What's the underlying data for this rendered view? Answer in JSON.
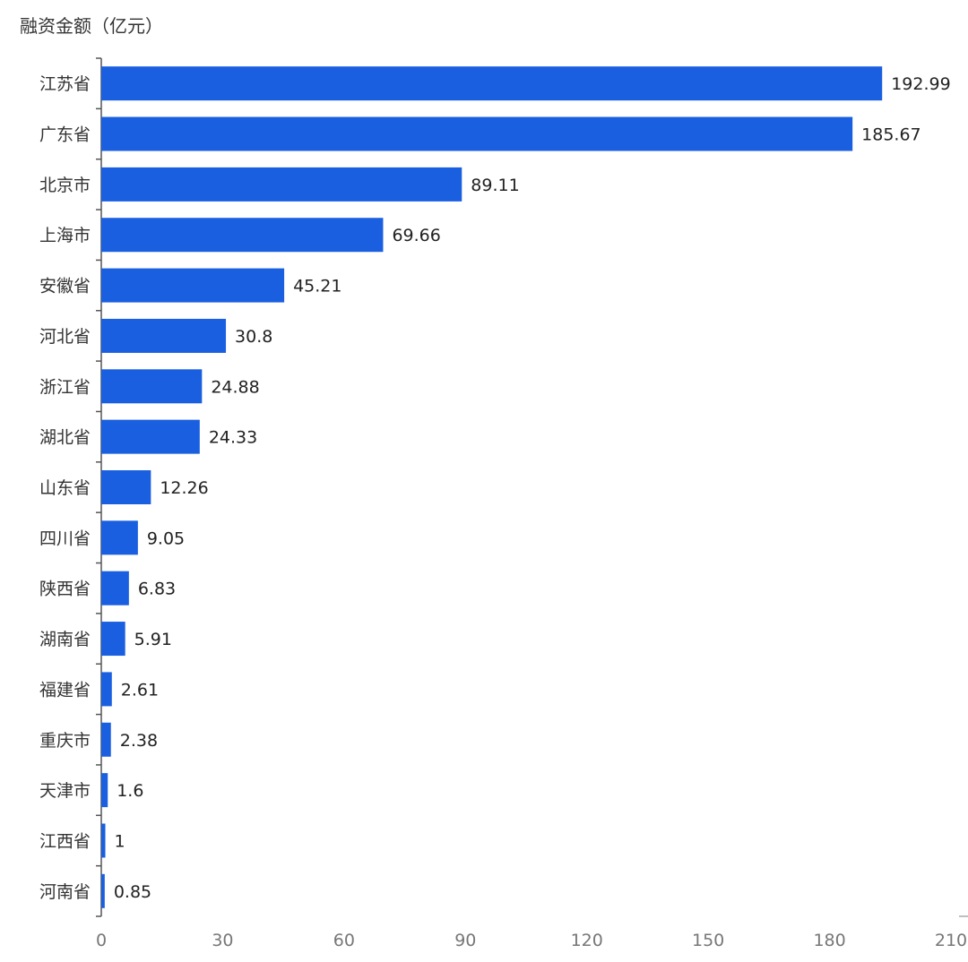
{
  "chart_data": {
    "type": "bar",
    "orientation": "horizontal",
    "ylabel": "融资金额（亿元）",
    "categories": [
      "江苏省",
      "广东省",
      "北京市",
      "上海市",
      "安徽省",
      "河北省",
      "浙江省",
      "湖北省",
      "山东省",
      "四川省",
      "陕西省",
      "湖南省",
      "福建省",
      "重庆市",
      "天津市",
      "江西省",
      "河南省"
    ],
    "values": [
      192.99,
      185.67,
      89.11,
      69.66,
      45.21,
      30.8,
      24.88,
      24.33,
      12.26,
      9.05,
      6.83,
      5.91,
      2.61,
      2.38,
      1.6,
      1,
      0.85
    ],
    "value_labels": [
      "192.99",
      "185.67",
      "89.11",
      "69.66",
      "45.21",
      "30.8",
      "24.88",
      "24.33",
      "12.26",
      "9.05",
      "6.83",
      "5.91",
      "2.61",
      "2.38",
      "1.6",
      "1",
      "0.85"
    ],
    "xticks": [
      "0",
      "30",
      "60",
      "90",
      "120",
      "150",
      "180",
      "210"
    ],
    "xlim": [
      0,
      210
    ],
    "grid": false,
    "bar_color": "#1a5fe0"
  }
}
